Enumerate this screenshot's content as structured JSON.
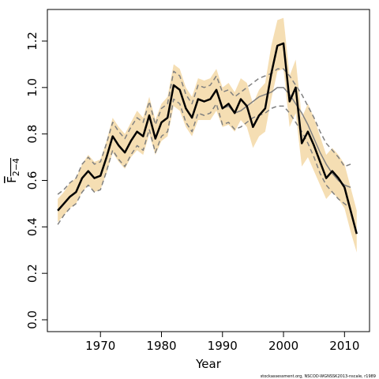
{
  "chart_data": {
    "type": "line",
    "x_label": "Year",
    "y_label": "F",
    "y_label_subscript": "2−4",
    "footnote": "stockassessment.org, NSCOD-WGNSSK2013-nscale, r1989",
    "x": [
      1963,
      1964,
      1965,
      1966,
      1967,
      1968,
      1969,
      1970,
      1971,
      1972,
      1973,
      1974,
      1975,
      1976,
      1977,
      1978,
      1979,
      1980,
      1981,
      1982,
      1983,
      1984,
      1985,
      1986,
      1987,
      1988,
      1989,
      1990,
      1991,
      1992,
      1993,
      1994,
      1995,
      1996,
      1997,
      1998,
      1999,
      2000,
      2001,
      2002,
      2003,
      2004,
      2005,
      2006,
      2007,
      2008,
      2009,
      2010,
      2011,
      2012
    ],
    "band": {
      "color": "#f5deb3",
      "upper": [
        0.52,
        0.55,
        0.59,
        0.61,
        0.67,
        0.71,
        0.68,
        0.69,
        0.77,
        0.87,
        0.83,
        0.8,
        0.85,
        0.9,
        0.87,
        0.96,
        0.86,
        0.93,
        0.96,
        1.1,
        1.08,
        1.0,
        0.96,
        1.04,
        1.03,
        1.04,
        1.08,
        1.0,
        1.02,
        0.98,
        1.04,
        1.02,
        0.93,
        0.99,
        1.02,
        1.18,
        1.29,
        1.3,
        1.05,
        1.12,
        0.87,
        0.93,
        0.87,
        0.79,
        0.71,
        0.74,
        0.71,
        0.67,
        0.57,
        0.47
      ],
      "lower": [
        0.42,
        0.45,
        0.48,
        0.5,
        0.55,
        0.58,
        0.55,
        0.56,
        0.63,
        0.72,
        0.68,
        0.65,
        0.7,
        0.73,
        0.71,
        0.8,
        0.71,
        0.77,
        0.79,
        0.92,
        0.9,
        0.83,
        0.79,
        0.86,
        0.86,
        0.86,
        0.9,
        0.83,
        0.84,
        0.81,
        0.86,
        0.83,
        0.74,
        0.79,
        0.81,
        0.95,
        1.07,
        1.08,
        0.83,
        0.89,
        0.66,
        0.7,
        0.64,
        0.58,
        0.52,
        0.55,
        0.52,
        0.48,
        0.38,
        0.29
      ]
    },
    "series": [
      {
        "color": "#808080",
        "width": 1.5,
        "dash": true,
        "values": [
          0.54,
          0.56,
          0.59,
          0.61,
          0.67,
          0.7,
          0.67,
          0.68,
          0.76,
          0.85,
          0.81,
          0.78,
          0.83,
          0.87,
          0.85,
          0.94,
          0.84,
          0.91,
          0.93,
          1.07,
          1.05,
          0.97,
          0.93,
          1.01,
          1.0,
          1.01,
          1.05,
          0.98,
          0.99,
          0.96,
          0.98,
          1.0,
          1.02,
          1.04,
          1.05,
          1.06,
          1.08,
          1.08,
          1.05,
          1.01,
          0.97,
          0.92,
          0.87,
          0.81,
          0.76,
          0.73,
          0.7,
          0.66,
          0.67,
          null
        ]
      },
      {
        "color": "#808080",
        "width": 1.5,
        "dash": true,
        "values": [
          0.41,
          0.45,
          0.48,
          0.5,
          0.55,
          0.58,
          0.55,
          0.56,
          0.64,
          0.73,
          0.69,
          0.66,
          0.71,
          0.75,
          0.73,
          0.82,
          0.72,
          0.79,
          0.81,
          0.95,
          0.93,
          0.85,
          0.81,
          0.89,
          0.88,
          0.89,
          0.93,
          0.84,
          0.85,
          0.82,
          0.83,
          0.85,
          0.87,
          0.88,
          0.89,
          0.91,
          0.92,
          0.92,
          0.89,
          0.85,
          0.81,
          0.76,
          0.7,
          0.63,
          0.58,
          0.55,
          0.52,
          0.5,
          0.48,
          null
        ]
      },
      {
        "color": "#808080",
        "width": 1.5,
        "dash": false,
        "values": [
          0.47,
          0.5,
          0.53,
          0.55,
          0.61,
          0.64,
          0.61,
          0.62,
          0.7,
          0.79,
          0.75,
          0.72,
          0.77,
          0.81,
          0.79,
          0.88,
          0.78,
          0.85,
          0.87,
          1.01,
          0.99,
          0.91,
          0.87,
          0.95,
          0.94,
          0.95,
          0.99,
          0.91,
          0.92,
          0.89,
          0.9,
          0.92,
          0.94,
          0.96,
          0.97,
          0.98,
          1.0,
          1.0,
          0.97,
          0.93,
          0.89,
          0.84,
          0.78,
          0.72,
          0.67,
          0.63,
          0.6,
          0.58,
          0.57,
          null
        ]
      },
      {
        "color": "#000000",
        "width": 2.5,
        "dash": false,
        "values": [
          0.47,
          0.5,
          0.53,
          0.55,
          0.61,
          0.64,
          0.61,
          0.62,
          0.7,
          0.79,
          0.75,
          0.72,
          0.77,
          0.81,
          0.79,
          0.88,
          0.78,
          0.85,
          0.87,
          1.01,
          0.99,
          0.91,
          0.87,
          0.95,
          0.94,
          0.95,
          0.99,
          0.91,
          0.93,
          0.89,
          0.95,
          0.92,
          0.83,
          0.88,
          0.91,
          1.06,
          1.18,
          1.19,
          0.94,
          1.0,
          0.76,
          0.81,
          0.75,
          0.68,
          0.61,
          0.64,
          0.61,
          0.57,
          0.47,
          0.37
        ]
      }
    ],
    "xlim": [
      1961.3,
      2014.1
    ],
    "xticks": [
      1970,
      1980,
      1990,
      2000,
      2010
    ],
    "ylim": [
      -0.051,
      1.336
    ],
    "yticks": [
      {
        "value": 0,
        "label": "0.0"
      },
      0.2,
      0.4,
      0.6,
      0.8,
      {
        "value": 1,
        "label": "1.0"
      },
      1.2
    ]
  }
}
